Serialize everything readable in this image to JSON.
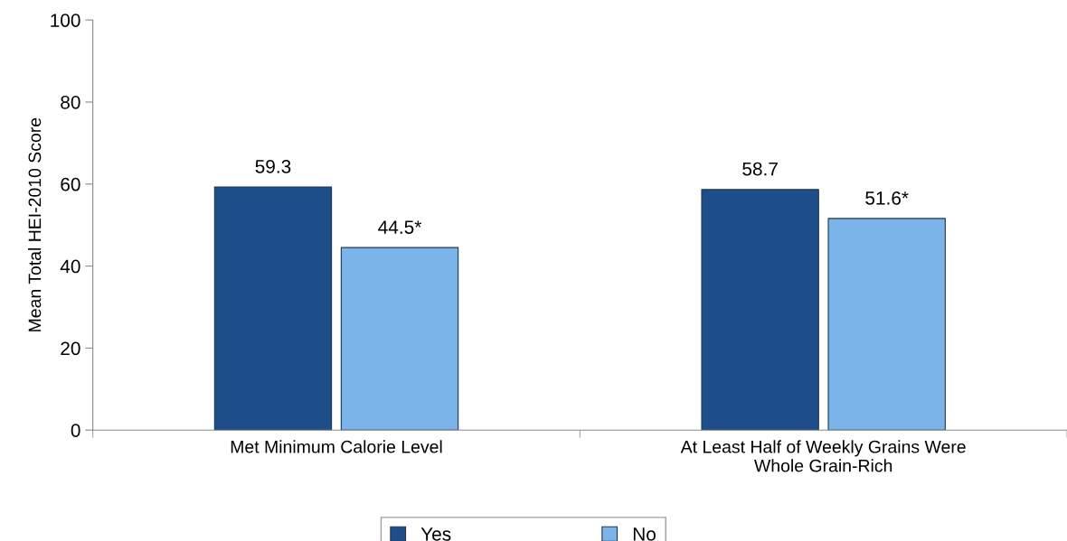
{
  "chart_data": {
    "type": "bar",
    "ylabel": "Mean Total HEI-2010 Score",
    "categories": [
      "Met Minimum Calorie Level",
      "At Least Half of Weekly Grains Were\nWhole Grain-Rich"
    ],
    "series": [
      {
        "name": "Yes",
        "color": "#1d4e89",
        "values": [
          59.3,
          58.7
        ],
        "value_labels": [
          "59.3",
          "58.7"
        ]
      },
      {
        "name": "No",
        "color": "#7bb4e8",
        "values": [
          44.5,
          51.6
        ],
        "value_labels": [
          "44.5*",
          "51.6*"
        ]
      }
    ],
    "ylim": [
      0,
      100
    ],
    "yticks": [
      0,
      20,
      40,
      60,
      80,
      100
    ],
    "grid": false,
    "legend": "bottom"
  }
}
